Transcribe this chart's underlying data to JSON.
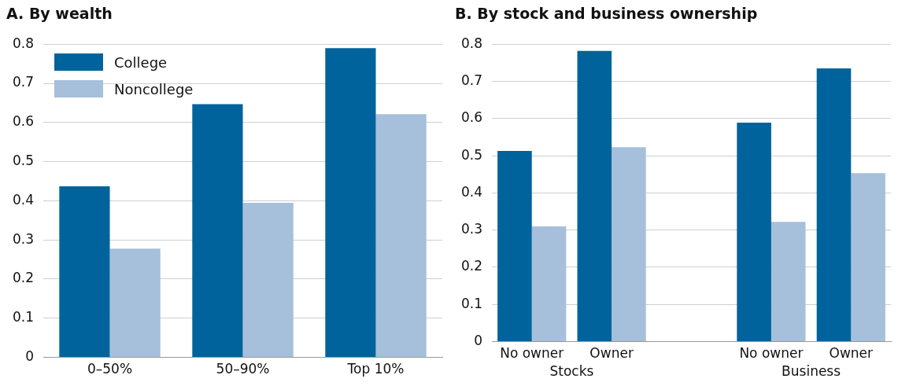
{
  "chart_data": [
    {
      "type": "bar",
      "title": "A. By wealth",
      "categories": [
        "0–50%",
        "50–90%",
        "Top 10%"
      ],
      "series": [
        {
          "name": "College",
          "color": "#00639c",
          "values": [
            0.437,
            0.647,
            0.79
          ]
        },
        {
          "name": "Noncollege",
          "color": "#a6bfdb",
          "values": [
            0.278,
            0.395,
            0.621
          ]
        }
      ],
      "ylim": [
        0,
        0.8
      ],
      "yticks": [
        0,
        0.1,
        0.2,
        0.3,
        0.4,
        0.5,
        0.6,
        0.7,
        0.8
      ],
      "grid": "y",
      "legend": "top left"
    },
    {
      "type": "bar",
      "title": "B. By stock and business ownership",
      "categories": [
        "No owner",
        "Owner",
        null,
        "No owner",
        "Owner"
      ],
      "series": [
        {
          "color": "#00639c",
          "values": [
            0.513,
            0.782,
            null,
            0.589,
            0.735
          ]
        },
        {
          "color": "#a6bfdb",
          "values": [
            0.31,
            0.523,
            null,
            0.322,
            0.453
          ]
        }
      ],
      "ylim": [
        0,
        0.8
      ],
      "yticks": [
        0,
        0.1,
        0.2,
        0.3,
        0.4,
        0.5,
        0.6,
        0.7,
        0.8
      ],
      "grid": "y",
      "annotations": [
        "Stocks",
        "Business"
      ]
    }
  ]
}
